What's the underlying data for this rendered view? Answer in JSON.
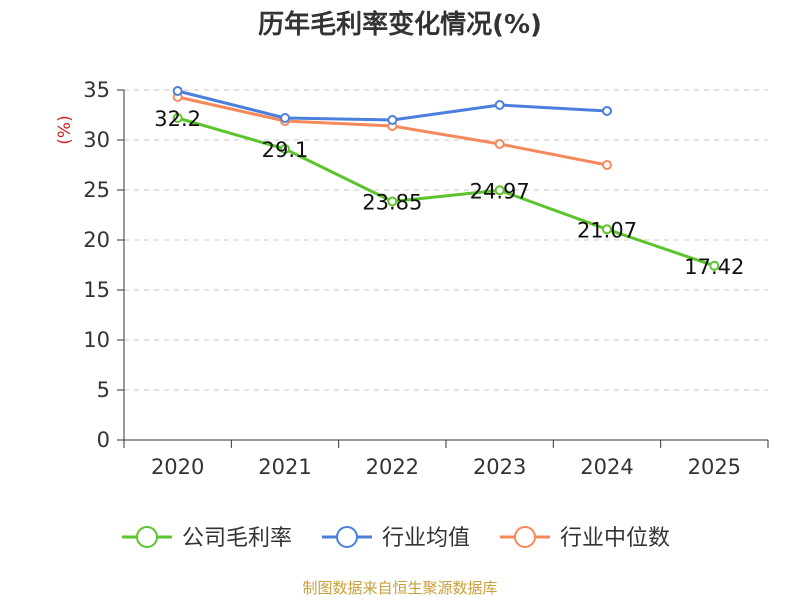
{
  "chart_data": {
    "type": "line",
    "title": "历年毛利率变化情况(%)",
    "ylabel": "(%)",
    "xlabel": "",
    "categories": [
      "2020",
      "2021",
      "2022",
      "2023",
      "2024",
      "2025"
    ],
    "ylim": [
      0,
      35
    ],
    "yticks": [
      0,
      5,
      10,
      15,
      20,
      25,
      30,
      35
    ],
    "grid": true,
    "legend_position": "bottom",
    "series": [
      {
        "name": "公司毛利率",
        "color": "#5cc42c",
        "values": [
          32.2,
          29.1,
          23.85,
          24.97,
          21.07,
          17.42
        ],
        "labels": [
          "32.2",
          "29.1",
          "23.85",
          "24.97",
          "21.07",
          "17.42"
        ]
      },
      {
        "name": "行业均值",
        "color": "#4a7fdc",
        "values": [
          34.9,
          32.2,
          32.0,
          33.5,
          32.9,
          null
        ]
      },
      {
        "name": "行业中位数",
        "color": "#f5895b",
        "values": [
          34.3,
          31.9,
          31.4,
          29.6,
          27.5,
          null
        ]
      }
    ]
  },
  "footer": "制图数据来自恒生聚源数据库"
}
